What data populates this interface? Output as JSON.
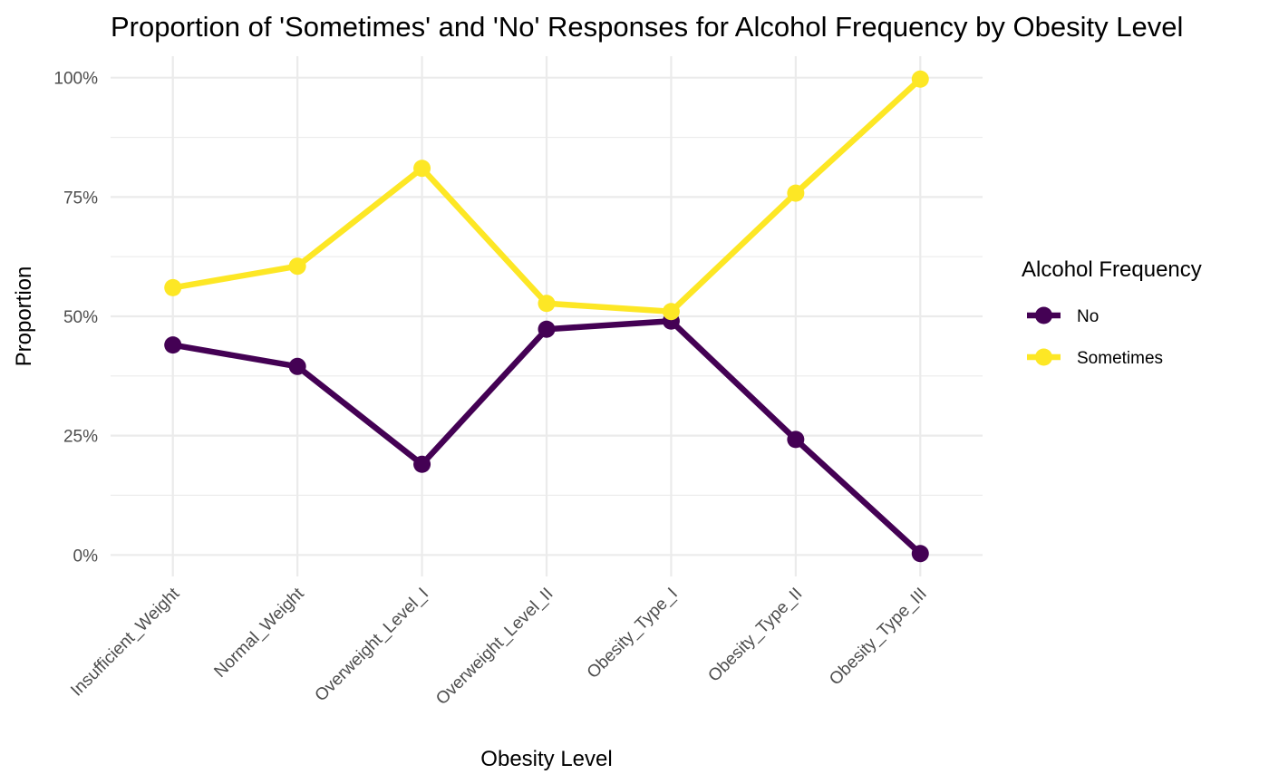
{
  "chart_data": {
    "type": "line",
    "title": "Proportion of 'Sometimes' and 'No' Responses for Alcohol Frequency by Obesity Level",
    "xlabel": "Obesity Level",
    "ylabel": "Proportion",
    "categories": [
      "Insufficient_Weight",
      "Normal_Weight",
      "Overweight_Level_I",
      "Overweight_Level_II",
      "Obesity_Type_I",
      "Obesity_Type_II",
      "Obesity_Type_III"
    ],
    "y_ticks": [
      0,
      0.25,
      0.5,
      0.75,
      1.0
    ],
    "y_tick_labels": [
      "0%",
      "25%",
      "50%",
      "75%",
      "100%"
    ],
    "ylim": [
      -0.045,
      1.045
    ],
    "grid": true,
    "legend": {
      "title": "Alcohol Frequency",
      "position": "right"
    },
    "series": [
      {
        "name": "No",
        "color": "#440154",
        "values": [
          0.44,
          0.395,
          0.19,
          0.473,
          0.49,
          0.242,
          0.003
        ]
      },
      {
        "name": "Sometimes",
        "color": "#FDE725",
        "values": [
          0.56,
          0.605,
          0.81,
          0.527,
          0.51,
          0.758,
          0.997
        ]
      }
    ]
  }
}
